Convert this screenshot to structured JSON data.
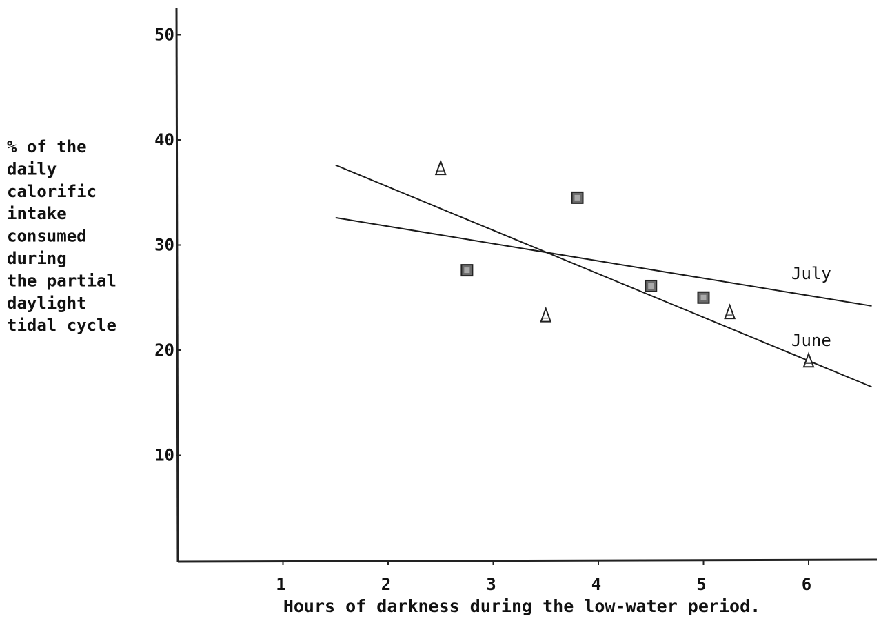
{
  "chart_data": {
    "type": "scatter",
    "title": "",
    "xlabel": "Hours of darkness during the low-water period.",
    "ylabel_lines": [
      "% of the",
      "daily",
      "calorific",
      "intake",
      "consumed",
      "during",
      "the partial",
      "daylight",
      "tidal cycle"
    ],
    "xlim": [
      0,
      6.6
    ],
    "ylim": [
      0,
      52
    ],
    "x_ticks": [
      1,
      2,
      3,
      4,
      5,
      6
    ],
    "y_ticks": [
      10,
      20,
      30,
      40,
      50
    ],
    "grid": false,
    "series": [
      {
        "name": "June",
        "marker": "triangle",
        "points": [
          {
            "x": 2.5,
            "y": 37.3
          },
          {
            "x": 3.5,
            "y": 23.3
          },
          {
            "x": 5.25,
            "y": 23.6
          },
          {
            "x": 6.0,
            "y": 19.0
          }
        ],
        "fit": [
          {
            "x": 1.5,
            "y": 37.6
          },
          {
            "x": 6.6,
            "y": 16.5
          }
        ]
      },
      {
        "name": "July",
        "marker": "square",
        "points": [
          {
            "x": 2.75,
            "y": 27.6
          },
          {
            "x": 3.8,
            "y": 34.5
          },
          {
            "x": 4.5,
            "y": 26.1
          },
          {
            "x": 5.0,
            "y": 25.0
          }
        ],
        "fit": [
          {
            "x": 1.5,
            "y": 32.6
          },
          {
            "x": 6.6,
            "y": 24.2
          }
        ]
      }
    ],
    "line_labels": [
      {
        "name": "July",
        "text": "July"
      },
      {
        "name": "June",
        "text": "June"
      }
    ]
  }
}
